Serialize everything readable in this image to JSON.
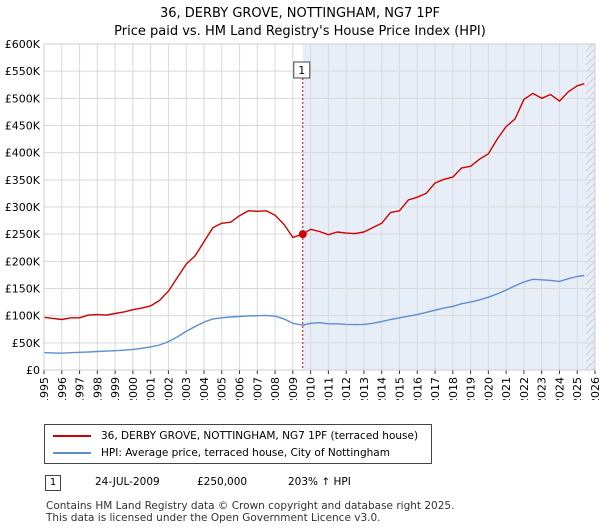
{
  "header": {
    "title": "36, DERBY GROVE, NOTTINGHAM, NG7 1PF",
    "subtitle": "Price paid vs. HM Land Registry's House Price Index (HPI)"
  },
  "chart_data": {
    "type": "line",
    "title": "36, DERBY GROVE, NOTTINGHAM, NG7 1PF",
    "subtitle": "Price paid vs. HM Land Registry's House Price Index (HPI)",
    "xlabel": "",
    "ylabel": "",
    "xlim": [
      1995,
      2026
    ],
    "ylim": [
      0,
      600000
    ],
    "x_ticks": [
      "1995",
      "1996",
      "1997",
      "1998",
      "1999",
      "2000",
      "2001",
      "2002",
      "2003",
      "2004",
      "2005",
      "2006",
      "2007",
      "2008",
      "2009",
      "2010",
      "2011",
      "2012",
      "2013",
      "2014",
      "2015",
      "2016",
      "2017",
      "2018",
      "2019",
      "2020",
      "2021",
      "2022",
      "2023",
      "2024",
      "2025",
      "2026"
    ],
    "y_ticks": [
      {
        "value": 0,
        "label": "£0"
      },
      {
        "value": 50000,
        "label": "£50K"
      },
      {
        "value": 100000,
        "label": "£100K"
      },
      {
        "value": 150000,
        "label": "£150K"
      },
      {
        "value": 200000,
        "label": "£200K"
      },
      {
        "value": 250000,
        "label": "£250K"
      },
      {
        "value": 300000,
        "label": "£300K"
      },
      {
        "value": 350000,
        "label": "£350K"
      },
      {
        "value": 400000,
        "label": "£400K"
      },
      {
        "value": 450000,
        "label": "£450K"
      },
      {
        "value": 500000,
        "label": "£500K"
      },
      {
        "value": 550000,
        "label": "£550K"
      },
      {
        "value": 600000,
        "label": "£600K"
      }
    ],
    "grid": true,
    "shaded_region": {
      "from": 2009.56,
      "to": 2026
    },
    "hatched_region": {
      "from": 2025.5,
      "to": 2026
    },
    "series": [
      {
        "name": "36, DERBY GROVE, NOTTINGHAM, NG7 1PF (terraced house)",
        "color": "#cc0000",
        "x": [
          1995.0,
          1995.5,
          1996.0,
          1996.5,
          1997.0,
          1997.5,
          1998.0,
          1998.5,
          1999.0,
          1999.5,
          2000.0,
          2000.5,
          2001.0,
          2001.5,
          2002.0,
          2002.5,
          2003.0,
          2003.5,
          2004.0,
          2004.5,
          2005.0,
          2005.5,
          2006.0,
          2006.5,
          2007.0,
          2007.5,
          2008.0,
          2008.5,
          2009.0,
          2009.56,
          2010.0,
          2010.5,
          2011.0,
          2011.5,
          2012.0,
          2012.5,
          2013.0,
          2013.5,
          2014.0,
          2014.5,
          2015.0,
          2015.5,
          2016.0,
          2016.5,
          2017.0,
          2017.5,
          2018.0,
          2018.5,
          2019.0,
          2019.5,
          2020.0,
          2020.5,
          2021.0,
          2021.5,
          2022.0,
          2022.5,
          2023.0,
          2023.5,
          2024.0,
          2024.5,
          2025.0,
          2025.4
        ],
        "values": [
          97000,
          95000,
          93000,
          96000,
          96000,
          101000,
          102000,
          101000,
          104000,
          107000,
          111000,
          114000,
          118000,
          128000,
          145000,
          170000,
          195000,
          210000,
          236000,
          262000,
          270000,
          272000,
          284000,
          293000,
          292000,
          293000,
          285000,
          268000,
          244000,
          250000,
          259000,
          255000,
          249000,
          254000,
          252000,
          251000,
          254000,
          262000,
          270000,
          290000,
          293000,
          313000,
          318000,
          325000,
          344000,
          351000,
          355000,
          372000,
          375000,
          388000,
          398000,
          425000,
          448000,
          462000,
          498000,
          509000,
          500000,
          507000,
          495000,
          512000,
          523000,
          527000
        ]
      },
      {
        "name": "HPI: Average price, terraced house, City of Nottingham",
        "color": "#5b8fce",
        "x": [
          1995.0,
          1995.5,
          1996.0,
          1996.5,
          1997.0,
          1997.5,
          1998.0,
          1998.5,
          1999.0,
          1999.5,
          2000.0,
          2000.5,
          2001.0,
          2001.5,
          2002.0,
          2002.5,
          2003.0,
          2003.5,
          2004.0,
          2004.5,
          2005.0,
          2005.5,
          2006.0,
          2006.5,
          2007.0,
          2007.5,
          2008.0,
          2008.5,
          2009.0,
          2009.56,
          2010.0,
          2010.5,
          2011.0,
          2011.5,
          2012.0,
          2012.5,
          2013.0,
          2013.5,
          2014.0,
          2014.5,
          2015.0,
          2015.5,
          2016.0,
          2016.5,
          2017.0,
          2017.5,
          2018.0,
          2018.5,
          2019.0,
          2019.5,
          2020.0,
          2020.5,
          2021.0,
          2021.5,
          2022.0,
          2022.5,
          2023.0,
          2023.5,
          2024.0,
          2024.5,
          2025.0,
          2025.4
        ],
        "values": [
          32000,
          31500,
          31000,
          31800,
          32500,
          33200,
          34000,
          34800,
          35500,
          36500,
          38000,
          40000,
          42500,
          46000,
          52000,
          61000,
          71000,
          80000,
          88000,
          94000,
          96000,
          97500,
          98500,
          99500,
          100000,
          100500,
          99000,
          94000,
          86000,
          82500,
          86000,
          87000,
          85000,
          85000,
          84000,
          83500,
          84000,
          86000,
          89000,
          93000,
          96000,
          99000,
          102000,
          106000,
          110000,
          114000,
          117000,
          122000,
          125000,
          129000,
          134000,
          140000,
          147000,
          155000,
          162000,
          167000,
          166000,
          165000,
          163000,
          168000,
          172000,
          174000
        ]
      }
    ],
    "annotations": [
      {
        "label": "1",
        "x": 2009.56,
        "value": 250000
      }
    ]
  },
  "legend": {
    "items": [
      {
        "label": "36, DERBY GROVE, NOTTINGHAM, NG7 1PF (terraced house)",
        "color": "#cc0000"
      },
      {
        "label": "HPI: Average price, terraced house, City of Nottingham",
        "color": "#5b8fce"
      }
    ]
  },
  "annotation_table": {
    "rows": [
      {
        "badge": "1",
        "date": "24-JUL-2009",
        "price": "£250,000",
        "change": "203% ↑ HPI"
      }
    ]
  },
  "footer": {
    "line1": "Contains HM Land Registry data © Crown copyright and database right 2025.",
    "line2": "This data is licensed under the Open Government Licence v3.0."
  }
}
